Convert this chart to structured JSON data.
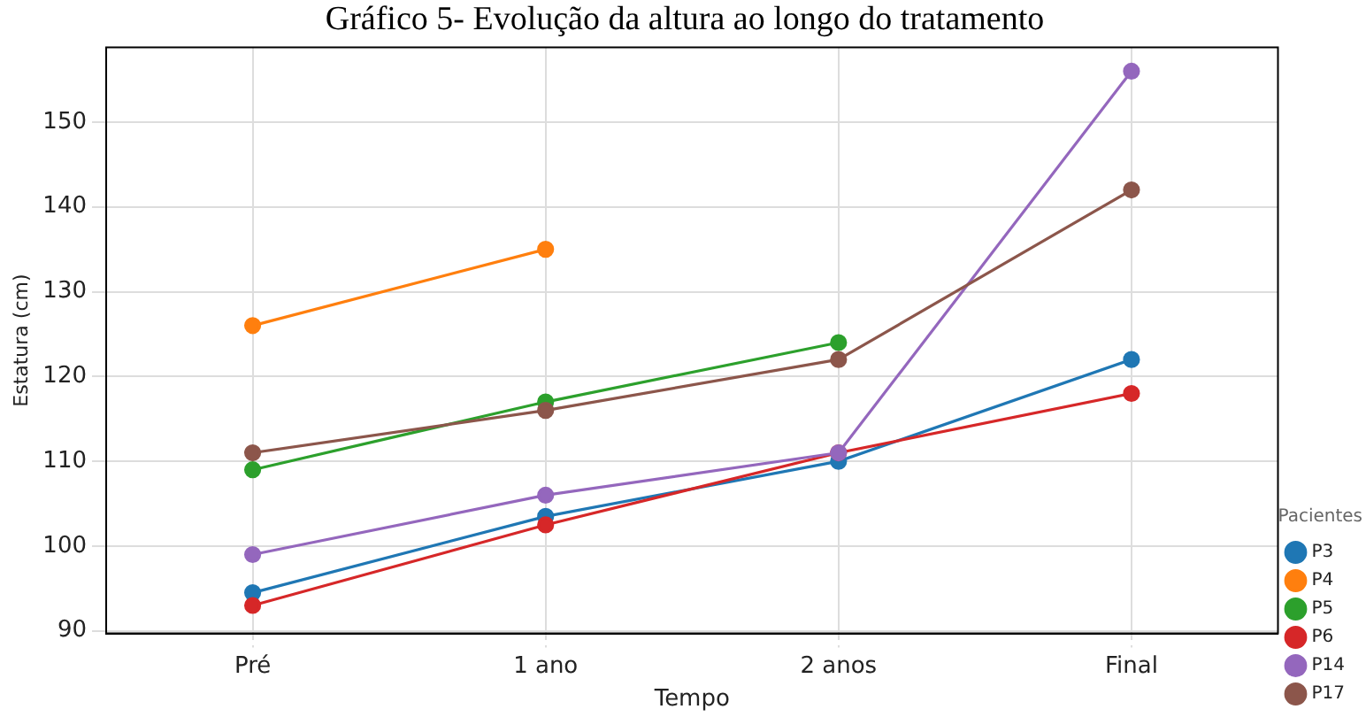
{
  "chart_data": {
    "type": "line",
    "title": "Gráfico 5- Evolução da altura ao longo do tratamento",
    "xlabel": "Tempo",
    "ylabel": "Estatura (cm)",
    "legend_title": "Pacientes",
    "categories": [
      "Pré",
      "1 ano",
      "2 anos",
      "Final"
    ],
    "series": [
      {
        "name": "P3",
        "color": "#1f77b4",
        "values": [
          94.5,
          103.5,
          110,
          122
        ]
      },
      {
        "name": "P4",
        "color": "#ff7f0e",
        "values": [
          126,
          135,
          null,
          null
        ]
      },
      {
        "name": "P5",
        "color": "#2ca02c",
        "values": [
          109,
          117,
          124,
          null
        ]
      },
      {
        "name": "P6",
        "color": "#d62728",
        "values": [
          93,
          102.5,
          111,
          118
        ]
      },
      {
        "name": "P14",
        "color": "#9467bd",
        "values": [
          99,
          106,
          111,
          156
        ]
      },
      {
        "name": "P17",
        "color": "#8c564b",
        "values": [
          111,
          116,
          122,
          142
        ]
      }
    ],
    "ylim": [
      89.7,
      158.8
    ],
    "yticks": [
      90,
      100,
      110,
      120,
      130,
      140,
      150
    ],
    "grid": true,
    "legend": "bottom right",
    "marker": "circle",
    "line_style": "solid"
  }
}
